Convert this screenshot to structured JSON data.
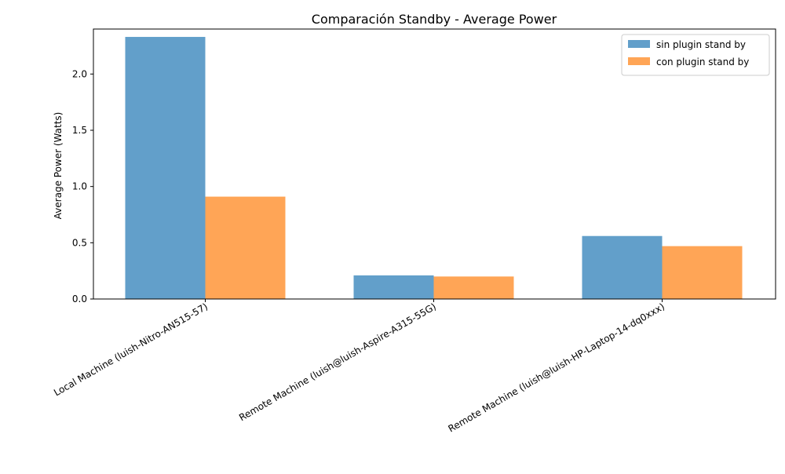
{
  "chart_data": {
    "type": "bar",
    "title": "Comparación Standby - Average Power",
    "xlabel": "",
    "ylabel": "Average Power (Watts)",
    "categories": [
      "Local Machine (luish-Nitro-AN515-57)",
      "Remote Machine (luish@luish-Aspire-A315-55G)",
      "Remote Machine (luish@luish-HP-Laptop-14-dq0xxx)"
    ],
    "series": [
      {
        "name": "sin plugin stand by",
        "values": [
          2.33,
          0.21,
          0.56
        ],
        "color": "#629fca"
      },
      {
        "name": "con plugin stand by",
        "values": [
          0.91,
          0.2,
          0.47
        ],
        "color": "#ffa556"
      }
    ],
    "ylim": [
      0,
      2.4
    ],
    "yticks": [
      "0.0",
      "0.5",
      "1.0",
      "1.5",
      "2.0"
    ],
    "grid": false,
    "legend_position": "top-right"
  }
}
